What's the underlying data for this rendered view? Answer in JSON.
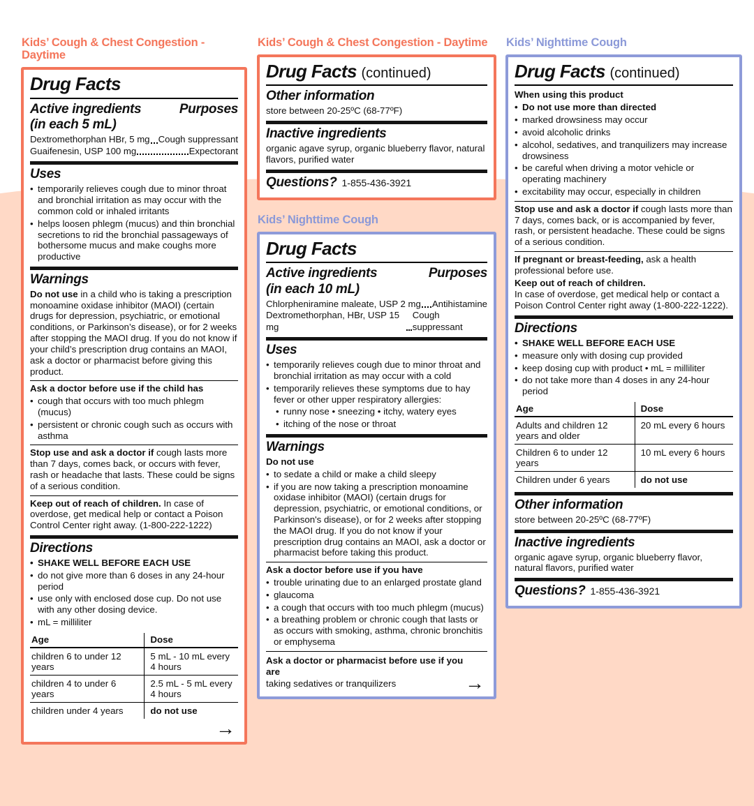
{
  "colors": {
    "orange_accent": "#f4765b",
    "blue_accent": "#8e9bd9",
    "peach_background": "#ffd9c6",
    "rule_black": "#141414"
  },
  "left": {
    "title": "Kids’ Cough & Chest Congestion - Daytime",
    "drug_facts": "Drug Facts",
    "active": {
      "heading": "Active ingredients",
      "sub": "(in each 5 mL)",
      "purposes": "Purposes",
      "rows": [
        {
          "name": "Dextromethorphan HBr, 5 mg",
          "purpose": "Cough suppressant"
        },
        {
          "name": "Guaifenesin, USP 100 mg",
          "purpose": "Expectorant"
        }
      ]
    },
    "uses": {
      "heading": "Uses",
      "b1": "temporarily relieves cough due to minor throat and bronchial irritation as may occur with the common cold or inhaled irritants",
      "b2": "helps loosen phlegm (mucus) and thin bronchial secretions to rid the bronchial passageways of bothersome mucus and make coughs more productive"
    },
    "warnings": {
      "heading": "Warnings",
      "dnu_lead": "Do not use",
      "dnu_text": " in a child who is taking a prescription monoamine oxidase inhibitor (MAOI) (certain drugs for depression, psychiatric, or emotional conditions, or Parkinson’s disease), or for 2 weeks after stopping the MAOI drug. If you do not know if your child’s prescription drug contains an MAOI, ask a doctor or pharmacist before giving this product.",
      "ask_heading": "Ask a doctor before use if the child has",
      "ask1": "cough that occurs with too much phlegm (mucus)",
      "ask2": "persistent or chronic cough such as occurs with asthma",
      "stop_lead": "Stop use and ask a doctor if",
      "stop_text": " cough lasts more than 7 days, comes back, or occurs with fever, rash or headache that lasts. These could be signs of a serious condition.",
      "keep_lead": "Keep out of reach of children.",
      "keep_text": " In case of overdose, get medical help or contact a Poison Control Center right away. (1-800-222-1222)"
    },
    "directions": {
      "heading": "Directions",
      "b1": "SHAKE WELL BEFORE EACH USE",
      "b2": "do not give more than 6 doses in any 24-hour period",
      "b3": "use only with enclosed dose cup. Do not use with any other dosing device.",
      "b4": "mL = milliliter",
      "table": {
        "age_header": "Age",
        "dose_header": "Dose",
        "rows": [
          {
            "age": "children 6 to under 12 years",
            "dose": "5 mL - 10 mL every 4 hours"
          },
          {
            "age": "children 4 to under 6 years",
            "dose": "2.5 mL - 5 mL every 4 hours"
          },
          {
            "age": "children under 4 years",
            "dose": "do not use"
          }
        ]
      }
    },
    "arrow": "→"
  },
  "mid_top": {
    "title": "Kids’ Cough & Chest Congestion - Daytime",
    "drug_facts": "Drug Facts",
    "continued": "(continued)",
    "other": {
      "heading": "Other information",
      "text": "store between 20-25ºC (68-77ºF)"
    },
    "inactive": {
      "heading": "Inactive ingredients",
      "text": "organic agave syrup, organic blueberry flavor, natural flavors, purified water"
    },
    "questions": {
      "heading": "Questions?",
      "phone": "1-855-436-3921"
    }
  },
  "mid_bottom": {
    "title": "Kids’ Nighttime Cough",
    "drug_facts": "Drug Facts",
    "active": {
      "heading": "Active ingredients",
      "sub": "(in each 10 mL)",
      "purposes": "Purposes",
      "rows": [
        {
          "name": "Chlorpheniramine maleate, USP 2 mg",
          "purpose": "Antihistamine"
        },
        {
          "name": "Dextromethorphan, HBr, USP 15 mg",
          "purpose": "Cough suppressant"
        }
      ]
    },
    "uses": {
      "heading": "Uses",
      "b1": "temporarily relieves cough due to minor throat and bronchial irritation as may occur with a cold",
      "b2": "temporarily relieves these symptoms due to hay fever or other upper respiratory allergies:",
      "sub1": "runny nose  • sneezing  • itchy, watery eyes",
      "sub2": "itching of the nose or throat"
    },
    "warnings": {
      "heading": "Warnings",
      "dnu_heading": "Do not use",
      "b1": "to sedate a child or make a child sleepy",
      "b2": "if you are now taking a prescription monoamine oxidase inhibitor (MAOI) (certain drugs for depression, psychiatric, or emotional conditions, or Parkinson's disease), or for 2 weeks after stopping the MAOI drug. If you do not know if your prescription drug contains an MAOI, ask a doctor or pharmacist before taking this product.",
      "ask_heading": "Ask a doctor before use if you have",
      "ask1": "trouble urinating due to an enlarged prostate gland",
      "ask2": "glaucoma",
      "ask3": "a cough that occurs with too much phlegm (mucus)",
      "ask4": "a breathing problem or chronic cough that lasts or as occurs with smoking, asthma, chronic bronchitis or emphysema",
      "ask2_heading": "Ask a doctor or pharmacist before use if you are",
      "ask2_text": "taking sedatives or tranquilizers"
    },
    "arrow": "→"
  },
  "right": {
    "title": "Kids’ Nighttime Cough",
    "drug_facts": "Drug Facts",
    "continued": "(continued)",
    "when": {
      "heading": "When using this product",
      "b1": "Do not use more than directed",
      "b2": "marked drowsiness may occur",
      "b3": "avoid alcoholic drinks",
      "b4": "alcohol, sedatives, and tranquilizers may increase drowsiness",
      "b5": "be careful when driving a motor vehicle or operating machinery",
      "b6": "excitability may occur, especially in children"
    },
    "stop_lead": "Stop use and ask a doctor if",
    "stop_text": " cough lasts more than 7 days, comes back, or is accompanied by fever, rash, or persistent headache. These could be signs of a serious condition.",
    "pregnant_lead": "If pregnant or breast-feeding,",
    "pregnant_text": " ask a health professional before use.",
    "keep_heading": "Keep out of reach of children.",
    "keep_text": "In case of overdose, get medical help or contact a Poison Control Center right away (1-800-222-1222).",
    "directions": {
      "heading": "Directions",
      "b1": "SHAKE WELL BEFORE EACH USE",
      "b2": "measure only with dosing cup provided",
      "b3": "keep dosing cup with product  • mL = milliliter",
      "b4": "do not take more than 4 doses in any 24-hour period",
      "table": {
        "age_header": "Age",
        "dose_header": "Dose",
        "rows": [
          {
            "age": "Adults and children 12 years and older",
            "dose": "20 mL every 6 hours"
          },
          {
            "age": "Children 6 to under 12 years",
            "dose": "10 mL every 6 hours"
          },
          {
            "age": "Children under 6 years",
            "dose": "do not use"
          }
        ]
      }
    },
    "other": {
      "heading": "Other information",
      "text": "store between 20-25ºC (68-77ºF)"
    },
    "inactive": {
      "heading": "Inactive ingredients",
      "text": "organic agave syrup, organic blueberry flavor, natural flavors, purified water"
    },
    "questions": {
      "heading": "Questions?",
      "phone": "1-855-436-3921"
    }
  }
}
